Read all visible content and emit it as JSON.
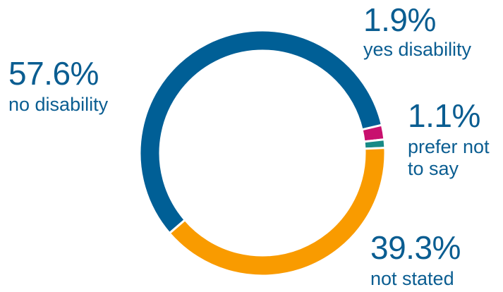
{
  "chart_data": {
    "type": "pie",
    "title": "",
    "categories": [
      "no disability",
      "yes disability",
      "prefer not to say",
      "not stated"
    ],
    "values": [
      57.6,
      1.9,
      1.1,
      39.3
    ],
    "value_labels": [
      "57.6%",
      "1.9%",
      "1.1%",
      "39.3%"
    ],
    "category_labels": [
      "no disability",
      "yes disability",
      "prefer not\nto say",
      "not stated"
    ],
    "colors": [
      "#005f96",
      "#c8106e",
      "#178a86",
      "#f99b00"
    ],
    "label_color": "#0a5d91",
    "start_angle_deg": 220.8,
    "direction": "counterclockwise",
    "donut": true,
    "legend": "none"
  }
}
